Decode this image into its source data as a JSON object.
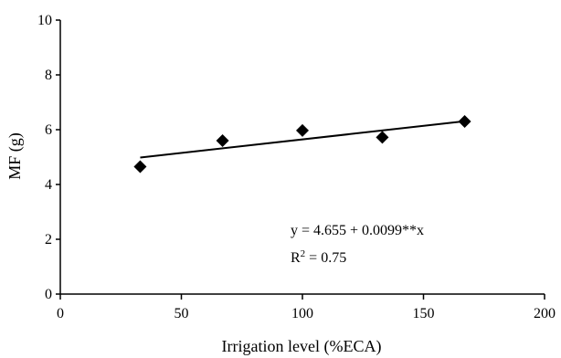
{
  "chart_data": {
    "type": "scatter",
    "title": "",
    "xlabel": "Irrigation level (%ECA)",
    "ylabel": "MF (g)",
    "xlim": [
      0,
      200
    ],
    "ylim": [
      0,
      10
    ],
    "xticks": [
      0,
      50,
      100,
      150,
      200
    ],
    "yticks": [
      0,
      2,
      4,
      6,
      8,
      10
    ],
    "grid": false,
    "points": [
      {
        "x": 33,
        "y": 4.65
      },
      {
        "x": 67,
        "y": 5.6
      },
      {
        "x": 100,
        "y": 5.97
      },
      {
        "x": 133,
        "y": 5.72
      },
      {
        "x": 167,
        "y": 6.3
      }
    ],
    "trendline": {
      "intercept": 4.655,
      "slope": 0.0099,
      "x_start": 33,
      "x_end": 167
    },
    "annotation": {
      "equation": "y = 4.655 + 0.0099**x",
      "r2_prefix": "R",
      "r2_sup": "2",
      "r2_value": " = 0.75"
    },
    "marker": "diamond",
    "colors": {
      "marker": "#000000",
      "line": "#000000"
    }
  }
}
